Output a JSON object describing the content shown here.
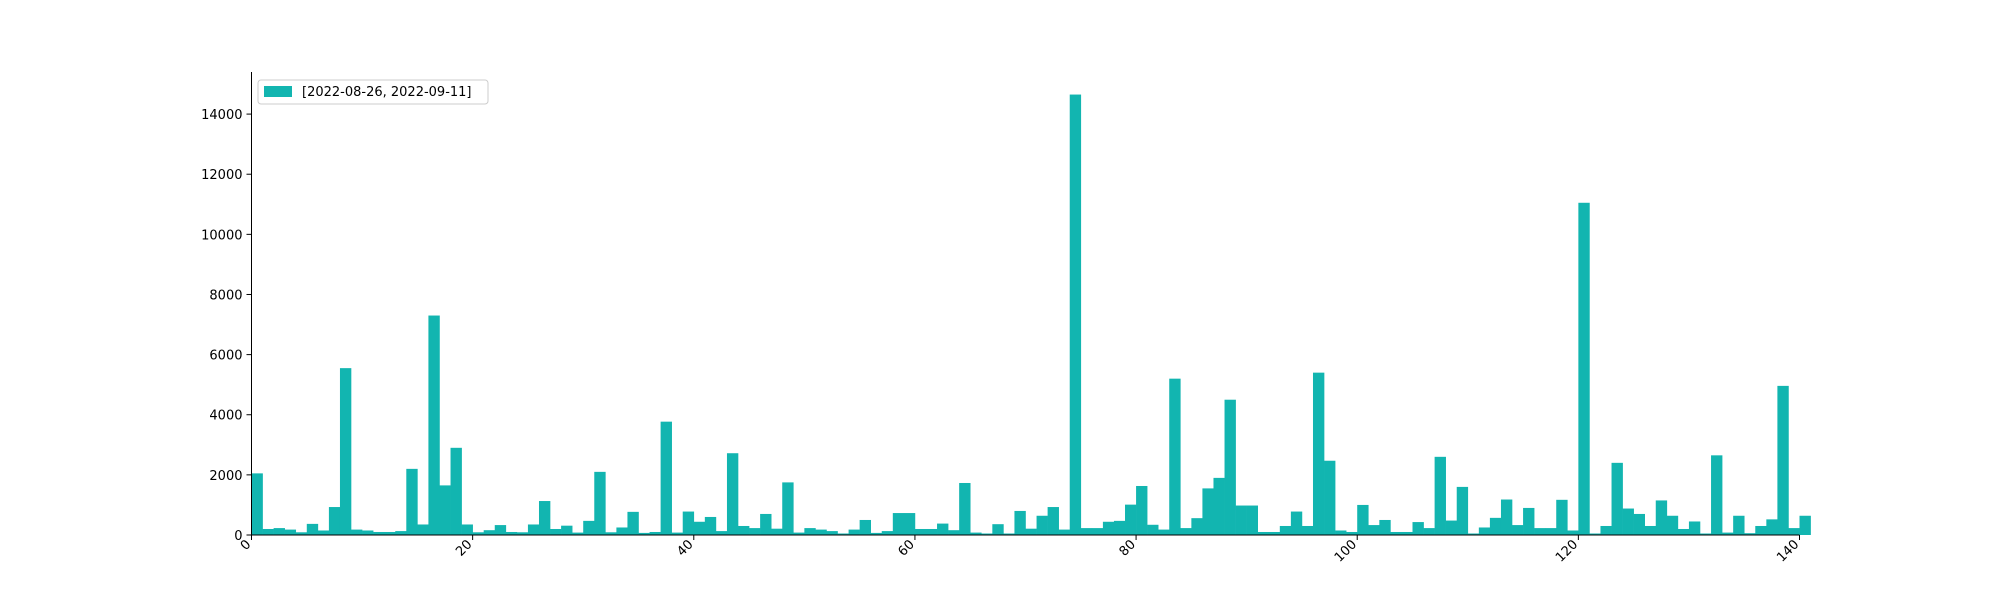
{
  "chart_data": {
    "type": "bar",
    "title": "",
    "xlabel": "",
    "ylabel": "",
    "xlim": [
      0,
      140
    ],
    "ylim": [
      0,
      15400
    ],
    "x_ticks": [
      0,
      20,
      40,
      60,
      80,
      100,
      120,
      140
    ],
    "y_ticks": [
      0,
      2000,
      4000,
      6000,
      8000,
      10000,
      12000,
      14000
    ],
    "x_tick_labels": [
      "0",
      "20",
      "40",
      "60",
      "80",
      "100",
      "120",
      "140"
    ],
    "y_tick_labels": [
      "0",
      "2000",
      "4000",
      "6000",
      "8000",
      "10000",
      "12000",
      "14000"
    ],
    "grid": false,
    "legend_position": "top-left",
    "series": [
      {
        "name": "[2022-08-26, 2022-09-11]",
        "color": "#12b5b0",
        "values": [
          2050,
          200,
          230,
          180,
          90,
          370,
          150,
          930,
          5550,
          180,
          150,
          100,
          100,
          130,
          2200,
          350,
          7300,
          1650,
          2900,
          350,
          90,
          160,
          330,
          100,
          90,
          350,
          1130,
          200,
          310,
          80,
          470,
          2100,
          90,
          250,
          770,
          70,
          100,
          3770,
          80,
          780,
          440,
          600,
          130,
          2720,
          300,
          230,
          700,
          210,
          1750,
          80,
          230,
          180,
          130,
          50,
          180,
          500,
          70,
          130,
          730,
          730,
          200,
          200,
          380,
          160,
          1730,
          80,
          50,
          360,
          50,
          800,
          210,
          640,
          930,
          180,
          14650,
          230,
          230,
          440,
          470,
          1010,
          1630,
          340,
          180,
          5200,
          230,
          560,
          1550,
          1900,
          4500,
          980,
          980,
          100,
          100,
          300,
          780,
          300,
          5400,
          2470,
          150,
          100,
          1000,
          330,
          500,
          100,
          100,
          430,
          230,
          2600,
          480,
          1600,
          50,
          250,
          570,
          1180,
          330,
          900,
          230,
          230,
          1170,
          150,
          11050,
          50,
          300,
          2400,
          880,
          700,
          300,
          1150,
          640,
          200,
          450,
          50,
          2650,
          80,
          640,
          60,
          300,
          520,
          4960,
          230,
          640
        ]
      }
    ]
  }
}
